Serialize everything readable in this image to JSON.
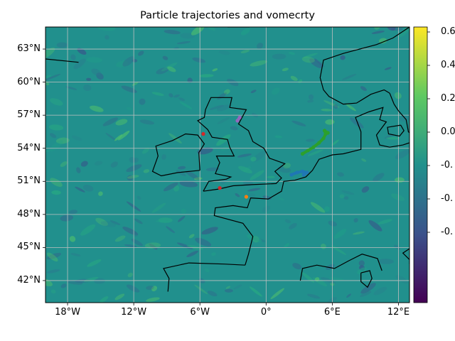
{
  "title": "Particle trajectories and vomecrty",
  "map": {
    "lon_range": [
      -20,
      13
    ],
    "lat_range": [
      40,
      65
    ],
    "lon_ticks": [
      "18°W",
      "12°W",
      "6°W",
      "0°",
      "6°E",
      "12°E"
    ],
    "lat_ticks": [
      "63°N",
      "60°N",
      "57°N",
      "54°N",
      "51°N",
      "48°N",
      "45°N",
      "42°N"
    ],
    "gridlines": true,
    "background_field": "vomecrty",
    "coastline_color": "#000000"
  },
  "colorbar": {
    "colormap": "viridis",
    "tick_labels": [
      "0.6",
      "0.4",
      "0.2",
      "0.0",
      "-0.",
      "-0.",
      "-0."
    ],
    "colors": [
      "#440154",
      "#3b528b",
      "#21918c",
      "#5ec962",
      "#fde725"
    ]
  },
  "trajectories": [
    {
      "color": "#1f77b4",
      "points": [
        [
          2.3,
          51.6
        ],
        [
          2.8,
          51.8
        ],
        [
          3.3,
          51.9
        ],
        [
          3.7,
          51.8
        ],
        [
          3.4,
          51.6
        ]
      ]
    },
    {
      "color": "#ff7f0e",
      "points": [
        [
          -1.8,
          49.6
        ]
      ]
    },
    {
      "color": "#2ca02c",
      "points": [
        [
          3.3,
          53.5
        ],
        [
          3.8,
          53.8
        ],
        [
          4.3,
          54.1
        ],
        [
          4.8,
          54.5
        ],
        [
          5.2,
          54.9
        ],
        [
          5.4,
          55.3
        ],
        [
          5.3,
          55.6
        ],
        [
          5.6,
          55.4
        ]
      ]
    },
    {
      "color": "#d62728",
      "points": [
        [
          -4.2,
          50.4
        ]
      ]
    },
    {
      "color": "#9467bd",
      "points": [
        [
          -2.4,
          56.8
        ],
        [
          -2.6,
          56.5
        ]
      ]
    },
    {
      "color": "#d62728",
      "points": [
        [
          -5.7,
          55.3
        ]
      ]
    }
  ]
}
